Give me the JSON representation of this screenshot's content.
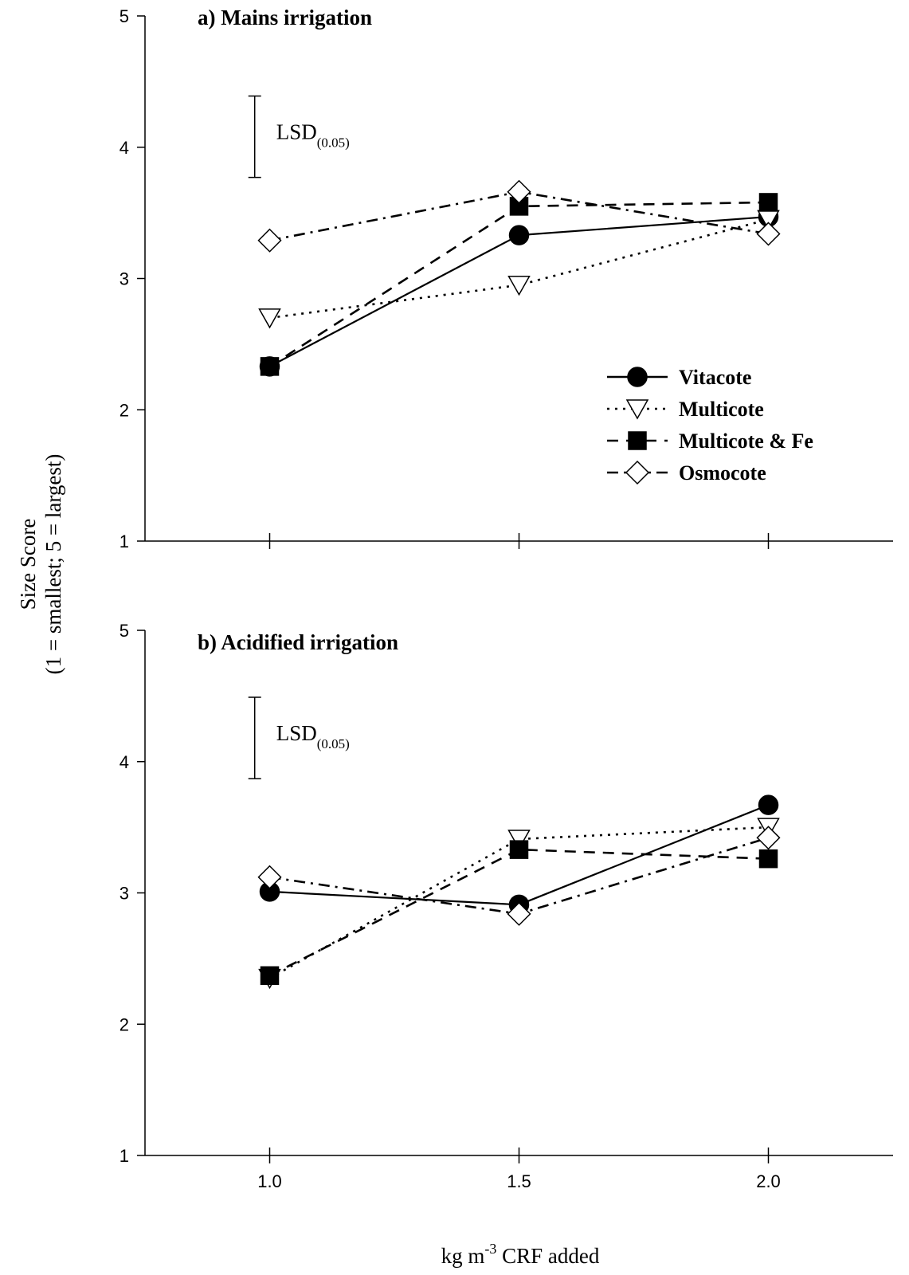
{
  "chart_data": [
    {
      "type": "line",
      "title": "a) Mains irrigation",
      "x": [
        1.0,
        1.5,
        2.0
      ],
      "xlim": [
        0.75,
        2.25
      ],
      "ylim": [
        1,
        5
      ],
      "yticks": [
        1,
        2,
        3,
        4,
        5
      ],
      "grid": false,
      "legend_position": "right",
      "lsd": {
        "label": "LSD",
        "subscript": "(0.05)",
        "low": 3.77,
        "high": 4.39,
        "x": 0.97
      },
      "series": [
        {
          "name": "Vitacote",
          "values": [
            2.33,
            3.33,
            3.47
          ],
          "marker": "circle",
          "line": "solid",
          "marker_fill": "#000000"
        },
        {
          "name": "Multicote",
          "values": [
            2.7,
            2.95,
            3.45
          ],
          "marker": "triangle-down",
          "line": "dotted",
          "marker_fill": "#ffffff"
        },
        {
          "name": "Multicote & Fe",
          "values": [
            2.33,
            3.55,
            3.58
          ],
          "marker": "square",
          "line": "dashed",
          "marker_fill": "#000000"
        },
        {
          "name": "Osmocote",
          "values": [
            3.29,
            3.66,
            3.34
          ],
          "marker": "diamond",
          "line": "dash-dot",
          "marker_fill": "#ffffff"
        }
      ]
    },
    {
      "type": "line",
      "title": "b) Acidified irrigation",
      "x": [
        1.0,
        1.5,
        2.0
      ],
      "xlim": [
        0.75,
        2.25
      ],
      "ylim": [
        1,
        5
      ],
      "yticks": [
        1,
        2,
        3,
        4,
        5
      ],
      "xticks": [
        "1.0",
        "1.5",
        "2.0"
      ],
      "grid": false,
      "lsd": {
        "label": "LSD",
        "subscript": "(0.05)",
        "low": 3.87,
        "high": 4.49,
        "x": 0.97
      },
      "series": [
        {
          "name": "Vitacote",
          "values": [
            3.01,
            2.91,
            3.67
          ],
          "marker": "circle",
          "line": "solid",
          "marker_fill": "#000000"
        },
        {
          "name": "Multicote",
          "values": [
            2.35,
            3.41,
            3.5
          ],
          "marker": "triangle-down",
          "line": "dotted",
          "marker_fill": "#ffffff"
        },
        {
          "name": "Multicote & Fe",
          "values": [
            2.37,
            3.33,
            3.26
          ],
          "marker": "square",
          "line": "dashed",
          "marker_fill": "#000000"
        },
        {
          "name": "Osmocote",
          "values": [
            3.12,
            2.84,
            3.42
          ],
          "marker": "diamond",
          "line": "dash-dot",
          "marker_fill": "#ffffff"
        }
      ]
    }
  ],
  "axes": {
    "ylabel_line1": "Size Score",
    "ylabel_line2": "(1 = smallest; 5 = largest)",
    "xlabel_main": "kg m",
    "xlabel_sup": "-3",
    "xlabel_tail": " CRF added"
  }
}
